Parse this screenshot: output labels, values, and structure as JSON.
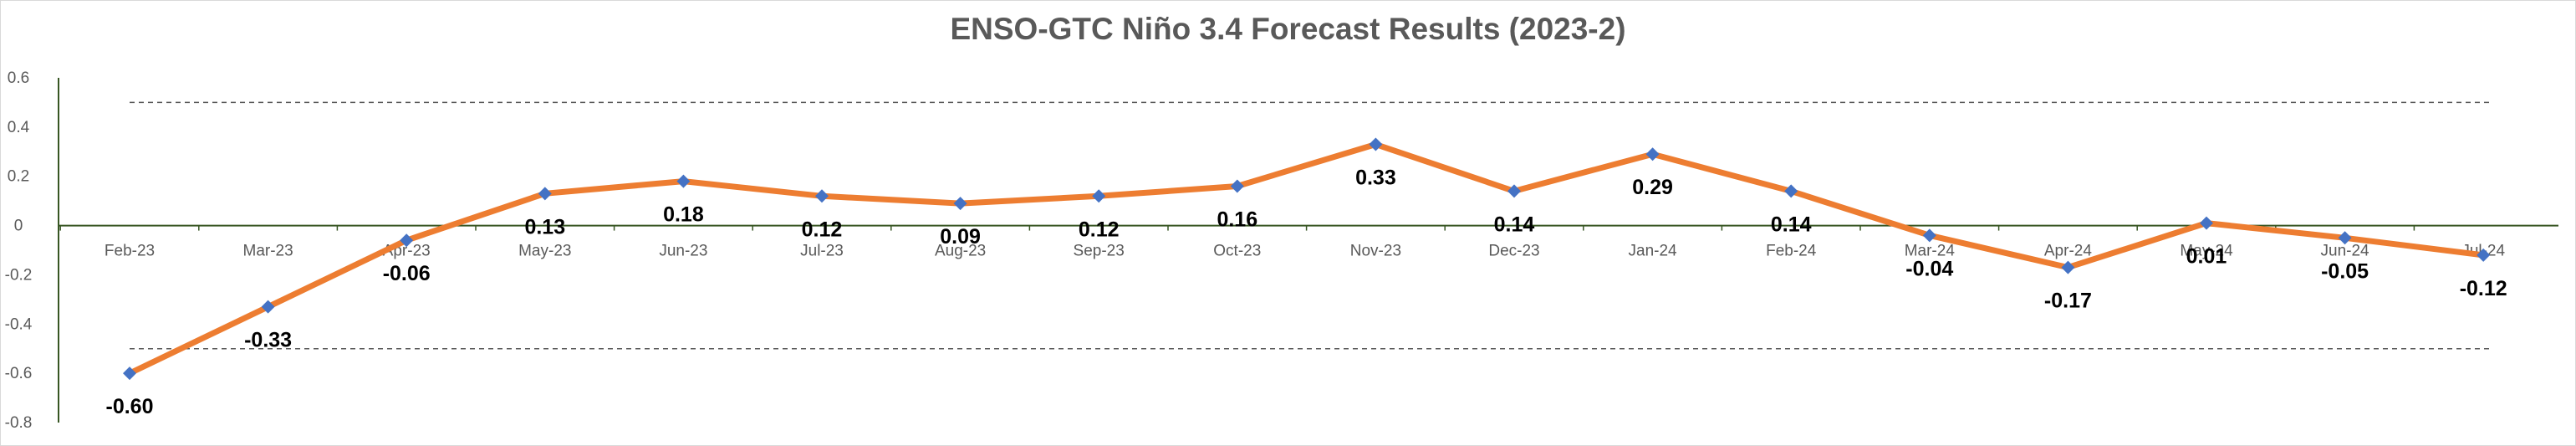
{
  "chart_data": {
    "type": "line",
    "title": "ENSO-GTC Niño 3.4 Forecast Results (2023-2)",
    "categories": [
      "Feb-23",
      "Mar-23",
      "Apr-23",
      "May-23",
      "Jun-23",
      "Jul-23",
      "Aug-23",
      "Sep-23",
      "Oct-23",
      "Nov-23",
      "Dec-23",
      "Jan-24",
      "Feb-24",
      "Mar-24",
      "Apr-24",
      "May-24",
      "Jun-24",
      "Jul-24"
    ],
    "series": [
      {
        "values": [
          -0.6,
          -0.33,
          -0.06,
          0.13,
          0.18,
          0.12,
          0.09,
          0.12,
          0.16,
          0.33,
          0.14,
          0.29,
          0.14,
          -0.04,
          -0.17,
          0.01,
          -0.05,
          -0.12
        ],
        "labels": [
          "-0.60",
          "-0.33",
          "-0.06",
          "0.13",
          "0.18",
          "0.12",
          "0.09",
          "0.12",
          "0.16",
          "0.33",
          "0.14",
          "0.29",
          "0.14",
          "-0.04",
          "-0.17",
          "0.01",
          "-0.05",
          "-0.12"
        ]
      }
    ],
    "reference_lines": [
      0.5,
      -0.5
    ],
    "ylim": [
      -0.8,
      0.6
    ],
    "yticks": [
      "0.6",
      "0.4",
      "0.2",
      "0",
      "-0.2",
      "-0.4",
      "-0.6",
      "-0.8"
    ],
    "ytick_values": [
      0.6,
      0.4,
      0.2,
      0,
      -0.2,
      -0.4,
      -0.6,
      -0.8
    ],
    "xlabel": "",
    "ylabel": "",
    "grid": false,
    "legend": "none",
    "colors": {
      "line": "#ED7D31",
      "marker": "#4472C4",
      "axis": "#375623",
      "reference": "#595959",
      "text": "#595959"
    }
  }
}
